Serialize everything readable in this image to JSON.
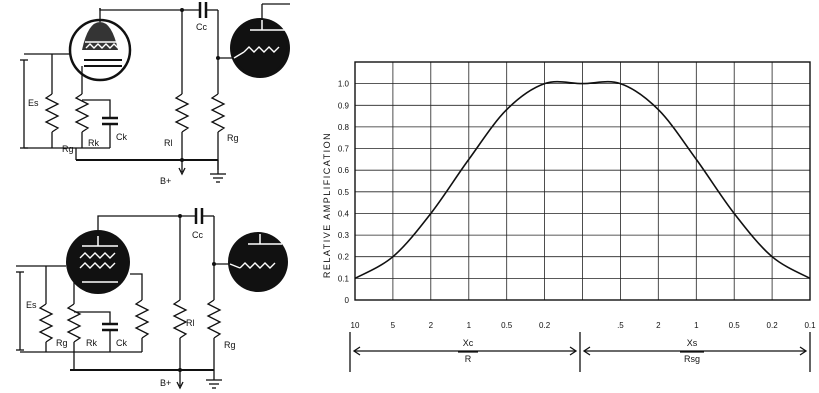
{
  "circuit_top": {
    "labels": {
      "es": "Es",
      "rg_in": "Rg",
      "rk": "Rk",
      "ck": "Ck",
      "rl": "Rl",
      "rg_out": "Rg",
      "cc": "Cc",
      "bplus": "B+"
    }
  },
  "circuit_bottom": {
    "labels": {
      "es": "Es",
      "rg_in": "Rg",
      "rk": "Rk",
      "ck": "Ck",
      "rl": "Rl",
      "rg_out": "Rg",
      "cc": "Cc",
      "bplus": "B+"
    }
  },
  "chart_data": {
    "type": "line",
    "title": "",
    "ylabel": "RELATIVE AMPLIFICATION",
    "ylim": [
      0,
      1.1
    ],
    "y_tick_labels": [
      "0",
      "0.1",
      "0.2",
      "0.3",
      "0.4",
      "0.5",
      "0.6",
      "0.7",
      "0.8",
      "0.9",
      "1.0"
    ],
    "x_tick_labels": [
      "10",
      "5",
      "2",
      "1",
      "0.5",
      "0.2",
      "",
      ".5",
      "2",
      "1",
      "0.5",
      "0.2",
      "0.1"
    ],
    "bracket_labels": {
      "left_num": "Xc",
      "left_den": "R",
      "right_num": "Xs",
      "right_den": "Rsg"
    },
    "series": [
      {
        "values": [
          0.1,
          0.2,
          0.4,
          0.65,
          0.88,
          1.0,
          1.0,
          1.0,
          0.88,
          0.65,
          0.4,
          0.2,
          0.1
        ]
      }
    ]
  }
}
